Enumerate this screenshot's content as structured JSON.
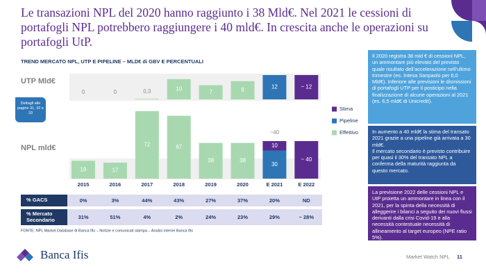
{
  "title": "Le transazioni NPL del 2020 hanno raggiunto i 38 Mld€. Nel 2021 le cessioni di portafogli NPL potrebbero raggiungere i 40 mld€. In crescita anche le operazioni su portafogli UtP.",
  "chart_data": [
    {
      "type": "bar",
      "title": "TREND MERCATO NPL, UTP E PIPELINE – MLD€ di GBV E PERCENTUALI",
      "label": "UTP Mld€",
      "ylim": [
        0,
        12
      ],
      "series": [
        {
          "color": "#a8d8b0",
          "values": [
            0,
            0,
            0.3,
            10,
            7,
            9,
            null,
            null
          ],
          "value_labels": [
            "0",
            "0",
            "0,3",
            "10",
            "7",
            "9",
            null,
            null
          ]
        },
        {
          "color": "#2e75b6",
          "values": [
            null,
            null,
            null,
            null,
            null,
            null,
            12,
            null
          ],
          "value_labels": [
            null,
            null,
            null,
            null,
            null,
            null,
            "12",
            null
          ]
        },
        {
          "color": "#5b2c8f",
          "values": [
            null,
            null,
            null,
            null,
            null,
            null,
            null,
            12
          ],
          "value_labels": [
            null,
            null,
            null,
            null,
            null,
            null,
            null,
            "~ 12"
          ]
        }
      ]
    },
    {
      "type": "bar",
      "label": "NPL mld€",
      "categories": [
        "2015",
        "2016",
        "2017",
        "2018",
        "2019",
        "2020",
        "E 2021",
        "E 2022"
      ],
      "ylim": [
        0,
        80
      ],
      "annotation": "~40",
      "series": [
        {
          "name": "Effettivo",
          "color": "#a8d8b0",
          "values": [
            19,
            17,
            72,
            67,
            38,
            38,
            null,
            null
          ]
        },
        {
          "name": "Pipeline",
          "color": "#2e75b6",
          "values": [
            null,
            null,
            null,
            null,
            null,
            null,
            30,
            null
          ]
        },
        {
          "name": "Stima",
          "color": "#5b2c8f",
          "values": [
            null,
            null,
            null,
            null,
            null,
            null,
            10,
            40
          ],
          "value_labels": [
            null,
            null,
            null,
            null,
            null,
            null,
            "10",
            "~ 40"
          ]
        }
      ]
    }
  ],
  "table": {
    "rows": [
      [
        "% GACS",
        "0%",
        "3%",
        "44%",
        "43%",
        "27%",
        "37%",
        "20%",
        "ND"
      ],
      [
        "% Mercato Secondario",
        "31%",
        "51%",
        "4%",
        "2%",
        "24%",
        "23%",
        "29%",
        "~ 28%"
      ]
    ]
  },
  "badge": "Dettagli alle pagine 31, 32 e 33",
  "source": "FONTE: NPL Market Database di Banca Ifis – Notizie e comunicati stampa – Analisi interne Banca Ifis",
  "notes": [
    "Il 2020 registra 38 mld € di cessioni NPL, un ammontare più elevato del previsto quale risultato dell’accelerazione nell’ultimo trimestre (es. Intesa Sanpaolo per 6,0 Mld€). Inferiore alle previsioni le dismissioni di portafogli UTP per il posticipo nella finalizzazione di alcune operazioni al 2021 (es. 6,5 mld€ di Unicredit).",
    "In aumento a 40 mld€ la stima del transato 2021 grazie a una pipeline già arrivata a 30 mld€.\nIl mercato secondario è previsto contribuire per quasi il 30% del transato NPL a conferma della maturità raggiunta da questo mercato.",
    "La previsione 2022 delle cessioni NPL e UtP proietta un ammontare in linea con il 2021, per la spinta della necessità di alleggerire i bilanci a seguito dei nuovi flussi derivanti dalla crisi Covid-19 e alla necessità contestuale necessità di allineamento al target europeo (NPE ratio 5%)."
  ],
  "logo": "Banca Ifis",
  "footer": {
    "text": "Market Watch NPL",
    "page": "11"
  }
}
